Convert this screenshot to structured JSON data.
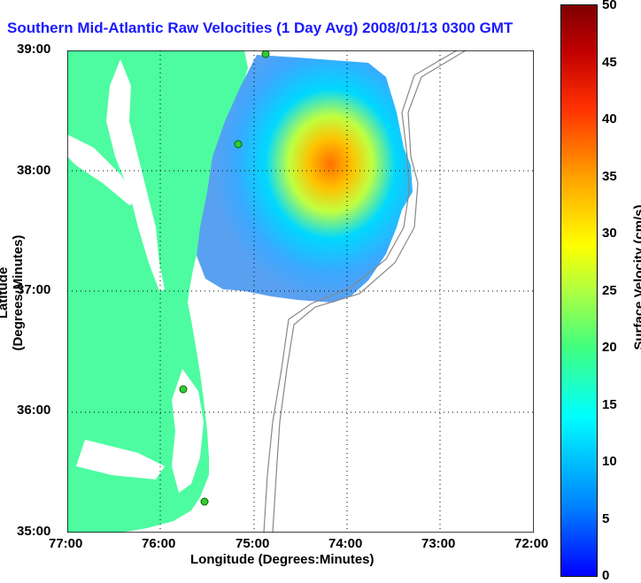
{
  "title": "Southern Mid-Atlantic Raw Velocities (1 Day Avg) 2008/01/13 0300 GMT",
  "axes": {
    "xlabel": "Longitude (Degrees:Minutes)",
    "ylabel": "Latitude (Degrees:Minutes)",
    "x_ticks": [
      "77:00",
      "76:00",
      "75:00",
      "74:00",
      "73:00",
      "72:00"
    ],
    "y_ticks": [
      "39:00",
      "38:00",
      "37:00",
      "36:00",
      "35:00"
    ]
  },
  "colorbar": {
    "label": "Surface Velocity (cm/s)",
    "ticks": [
      "50",
      "45",
      "40",
      "35",
      "30",
      "25",
      "20",
      "15",
      "10",
      "5",
      "0"
    ]
  },
  "colors": {
    "land": "#4dfca0",
    "title": "#1a1aff",
    "station": "#33cc33"
  }
}
